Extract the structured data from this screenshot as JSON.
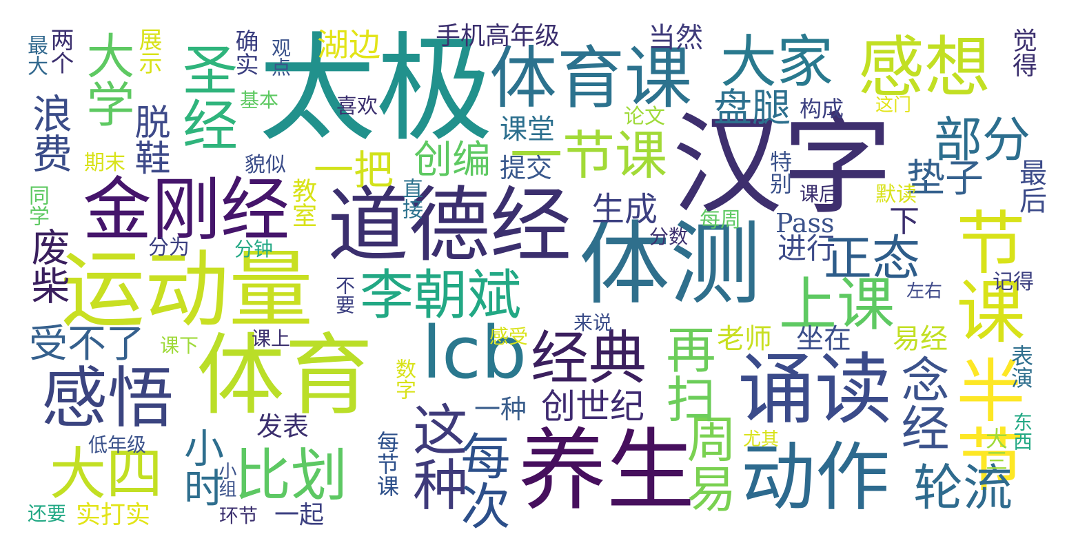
{
  "palette": {
    "background": "#ffffff",
    "dark_purple": "#440154",
    "indigo": "#3b528b",
    "blue": "#31688e",
    "teal": "#21918c",
    "green": "#35b779",
    "lime": "#90d743",
    "yellow": "#fde725"
  },
  "words": [
    {
      "text": "汉字",
      "color": "#3e2f6e"
    },
    {
      "text": "太极",
      "color": "#21918c"
    },
    {
      "text": "体测",
      "color": "#2f6f8c"
    },
    {
      "text": "体育课",
      "color": "#2c728e"
    },
    {
      "text": "道德经",
      "color": "#3b2f6e"
    },
    {
      "text": "金刚经",
      "color": "#45156b"
    },
    {
      "text": "运动量",
      "color": "#c8df22"
    },
    {
      "text": "体育",
      "color": "#bade28"
    },
    {
      "text": "lcb",
      "color": "#2a788e"
    },
    {
      "text": "诵读",
      "color": "#3b4b8a"
    },
    {
      "text": "养生",
      "color": "#460f5d"
    },
    {
      "text": "动作",
      "color": "#2d6a8e"
    },
    {
      "text": "李朝斌",
      "color": "#22a884"
    },
    {
      "text": "经典",
      "color": "#3b1f5e"
    },
    {
      "text": "感想",
      "color": "#c2df23"
    },
    {
      "text": "大家",
      "color": "#29798e"
    },
    {
      "text": "上课",
      "color": "#5ec962"
    },
    {
      "text": "节课",
      "color": "#d8e219"
    },
    {
      "text": "半节",
      "color": "#fde725"
    },
    {
      "text": "感悟",
      "color": "#3b4480"
    },
    {
      "text": "大四",
      "color": "#c2df23"
    },
    {
      "text": "一节课",
      "color": "#a2da37"
    },
    {
      "text": "比划",
      "color": "#5dc863"
    },
    {
      "text": "这种",
      "color": "#3e3a7a"
    },
    {
      "text": "轮流",
      "color": "#2f6b8e"
    },
    {
      "text": "每次",
      "color": "#2c4f8a"
    },
    {
      "text": "周易",
      "color": "#7ad151"
    },
    {
      "text": "再扫",
      "color": "#6ccd5a"
    },
    {
      "text": "念经",
      "color": "#3b528b"
    },
    {
      "text": "正态",
      "color": "#2e5d8a"
    },
    {
      "text": "部分",
      "color": "#2c6e8e"
    },
    {
      "text": "圣经",
      "color": "#2fb47c"
    },
    {
      "text": "大学",
      "color": "#5ec962"
    },
    {
      "text": "浪费",
      "color": "#3a4c88"
    },
    {
      "text": "废柴",
      "color": "#3a1f5e"
    },
    {
      "text": "受不了",
      "color": "#35608d"
    },
    {
      "text": "小时",
      "color": "#2e6e8e"
    },
    {
      "text": "盘腿",
      "color": "#2d708e"
    },
    {
      "text": "垫子",
      "color": "#34608d"
    },
    {
      "text": "一把",
      "color": "#d2e21b"
    },
    {
      "text": "创编",
      "color": "#5ec962"
    },
    {
      "text": "生成",
      "color": "#3b3f80"
    },
    {
      "text": "脱鞋",
      "color": "#3e4a89"
    },
    {
      "text": "湖边",
      "color": "#e2e418"
    },
    {
      "text": "创世纪",
      "color": "#3e2a70"
    },
    {
      "text": "Pass",
      "color": "#3b528b"
    },
    {
      "text": "进行",
      "color": "#3e4c8a"
    },
    {
      "text": "手机高年级",
      "color": "#3b2f6e"
    },
    {
      "text": "当然",
      "color": "#3e3a7a"
    },
    {
      "text": "课堂",
      "color": "#2c6f8e"
    },
    {
      "text": "提交",
      "color": "#38578c"
    },
    {
      "text": "老师",
      "color": "#c8df22"
    },
    {
      "text": "坐在",
      "color": "#3a4d8a"
    },
    {
      "text": "易经",
      "color": "#c2df23"
    },
    {
      "text": "左右",
      "color": "#3f4a8a"
    },
    {
      "text": "一种",
      "color": "#3a5e8c"
    },
    {
      "text": "发表",
      "color": "#3b2f6e"
    },
    {
      "text": "下",
      "color": "#3b2f6e"
    },
    {
      "text": "最后",
      "color": "#3b4a89"
    },
    {
      "text": "表演",
      "color": "#2f6f8e"
    },
    {
      "text": "大三",
      "color": "#9fda3a"
    },
    {
      "text": "东西",
      "color": "#22a884"
    },
    {
      "text": "记得",
      "color": "#3b3f80"
    },
    {
      "text": "觉得",
      "color": "#3b2f6e"
    },
    {
      "text": "两个",
      "color": "#3b2f6e"
    },
    {
      "text": "最大",
      "color": "#31688e"
    },
    {
      "text": "展示",
      "color": "#d8e219"
    },
    {
      "text": "确实",
      "color": "#3b3f80"
    },
    {
      "text": "观点",
      "color": "#3b528b"
    },
    {
      "text": "基本",
      "color": "#5ec962"
    },
    {
      "text": "期末",
      "color": "#d8e219"
    },
    {
      "text": "同学",
      "color": "#5ec962"
    },
    {
      "text": "貌似",
      "color": "#3a4c88"
    },
    {
      "text": "直接",
      "color": "#2c728e"
    },
    {
      "text": "教室",
      "color": "#d8e219"
    },
    {
      "text": "分为",
      "color": "#3b3f80"
    },
    {
      "text": "分钟",
      "color": "#22a884"
    },
    {
      "text": "分数",
      "color": "#3b2f6e"
    },
    {
      "text": "每周",
      "color": "#5ec962"
    },
    {
      "text": "不要",
      "color": "#3b3f80"
    },
    {
      "text": "来说",
      "color": "#3a4c88"
    },
    {
      "text": "感受",
      "color": "#d8e219"
    },
    {
      "text": "课上",
      "color": "#3b2f6e"
    },
    {
      "text": "课下",
      "color": "#9fda3a"
    },
    {
      "text": "数字",
      "color": "#d8e219"
    },
    {
      "text": "每节课",
      "color": "#2c4f8a"
    },
    {
      "text": "小组",
      "color": "#3b528b"
    },
    {
      "text": "低年级",
      "color": "#3b528b"
    },
    {
      "text": "实打实",
      "color": "#e2e418"
    },
    {
      "text": "还要",
      "color": "#22a884"
    },
    {
      "text": "环节",
      "color": "#3b2f6e"
    },
    {
      "text": "一起",
      "color": "#3b3f80"
    },
    {
      "text": "尤其",
      "color": "#d8e219"
    },
    {
      "text": "喜欢",
      "color": "#3b2f6e"
    },
    {
      "text": "论文",
      "color": "#9fda3a"
    },
    {
      "text": "构成",
      "color": "#3b3f80"
    },
    {
      "text": "这门",
      "color": "#e2e418"
    },
    {
      "text": "特别",
      "color": "#3b528b"
    },
    {
      "text": "课后",
      "color": "#3b2f6e"
    },
    {
      "text": "默读",
      "color": "#d8e219"
    }
  ]
}
